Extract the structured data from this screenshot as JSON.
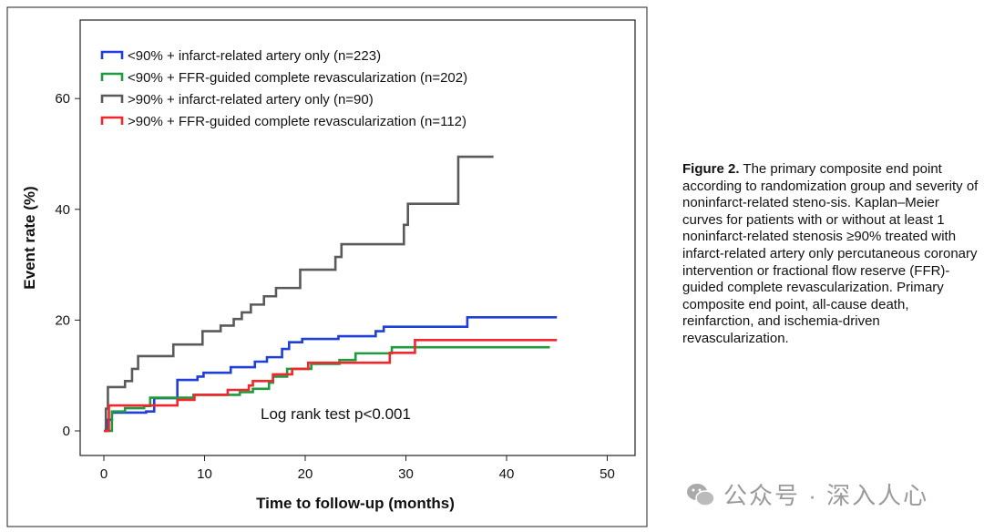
{
  "chart_data": {
    "type": "line",
    "step": true,
    "xlabel": "Time to follow-up (months)",
    "ylabel": "Event rate (%)",
    "xlim": [
      -2,
      53
    ],
    "ylim": [
      -2,
      72
    ],
    "xticks": [
      0,
      10,
      20,
      30,
      40,
      50
    ],
    "yticks": [
      0,
      20,
      40,
      60
    ],
    "grid": false,
    "legend_position": "top-left",
    "annotation": "Log rank test p<0.001",
    "series": [
      {
        "name": "<90% + infarct-related artery only (n=223)",
        "color": "#1f3fd6",
        "x": [
          0,
          0.3,
          0.8,
          4.2,
          5,
          7.3,
          9.3,
          9.9,
          12.6,
          15,
          16.2,
          17.7,
          18.4,
          19.7,
          23.3,
          27,
          27.8,
          36.1,
          45
        ],
        "y": [
          0,
          2,
          3.3,
          3.5,
          5.9,
          9.2,
          9.8,
          10.5,
          11.5,
          12.5,
          13.3,
          14.8,
          16,
          16.6,
          17.1,
          18,
          18.8,
          20.5,
          20.5
        ]
      },
      {
        "name": "<90% + FFR-guided complete revascularization (n=202)",
        "color": "#1f9a3e",
        "x": [
          0,
          0.8,
          2.1,
          4,
          4.6,
          8.9,
          13.5,
          14.8,
          16.4,
          16.8,
          18.2,
          20.6,
          23.4,
          25,
          28.6,
          44.3
        ],
        "y": [
          0,
          3.5,
          4.1,
          4.5,
          6,
          6.5,
          7,
          7.6,
          8.7,
          9.8,
          11.2,
          12.1,
          12.8,
          14,
          15.1,
          15.1
        ]
      },
      {
        "name": ">90% + infarct-related artery only (n=90)",
        "color": "#5a5a5a",
        "x": [
          0,
          0.2,
          0.4,
          2.1,
          2.8,
          3.4,
          6.9,
          9.8,
          11.6,
          12.9,
          13.7,
          14.6,
          15.9,
          17.1,
          19.5,
          23,
          23.6,
          29.8,
          30.2,
          35.2,
          38.7
        ],
        "y": [
          0,
          4,
          7.9,
          9,
          11.2,
          13.5,
          15.6,
          18,
          19,
          20.2,
          21.4,
          22.8,
          24.3,
          25.8,
          29.1,
          31.4,
          33.7,
          37.2,
          41,
          49.5,
          49.5
        ]
      },
      {
        "name": ">90% + FFR-guided complete revascularization (n=112)",
        "color": "#f0282d",
        "x": [
          0,
          0.5,
          7.3,
          9,
          12.3,
          14.4,
          14.8,
          16.8,
          18.7,
          20.3,
          28.4,
          30.9,
          45
        ],
        "y": [
          0,
          4.6,
          5.6,
          6.5,
          7.4,
          8.2,
          9,
          10.2,
          11.2,
          12.3,
          14.1,
          16.4,
          16.4
        ]
      }
    ]
  },
  "caption": {
    "label": "Figure 2.",
    "text": " The primary composite end point according to randomization group and severity of noninfarct-related steno-sis. Kaplan–Meier curves for patients with or without at least 1 noninfarct-related stenosis ≥90% treated with infarct-related artery only percutaneous coronary intervention or fractional flow reserve (FFR)-guided complete revascularization. Primary composite end point, all-cause death, reinfarction, and ischemia-driven revascularization."
  },
  "watermark": {
    "text": "公众号 · 深入人心",
    "icon": "wechat-icon"
  }
}
